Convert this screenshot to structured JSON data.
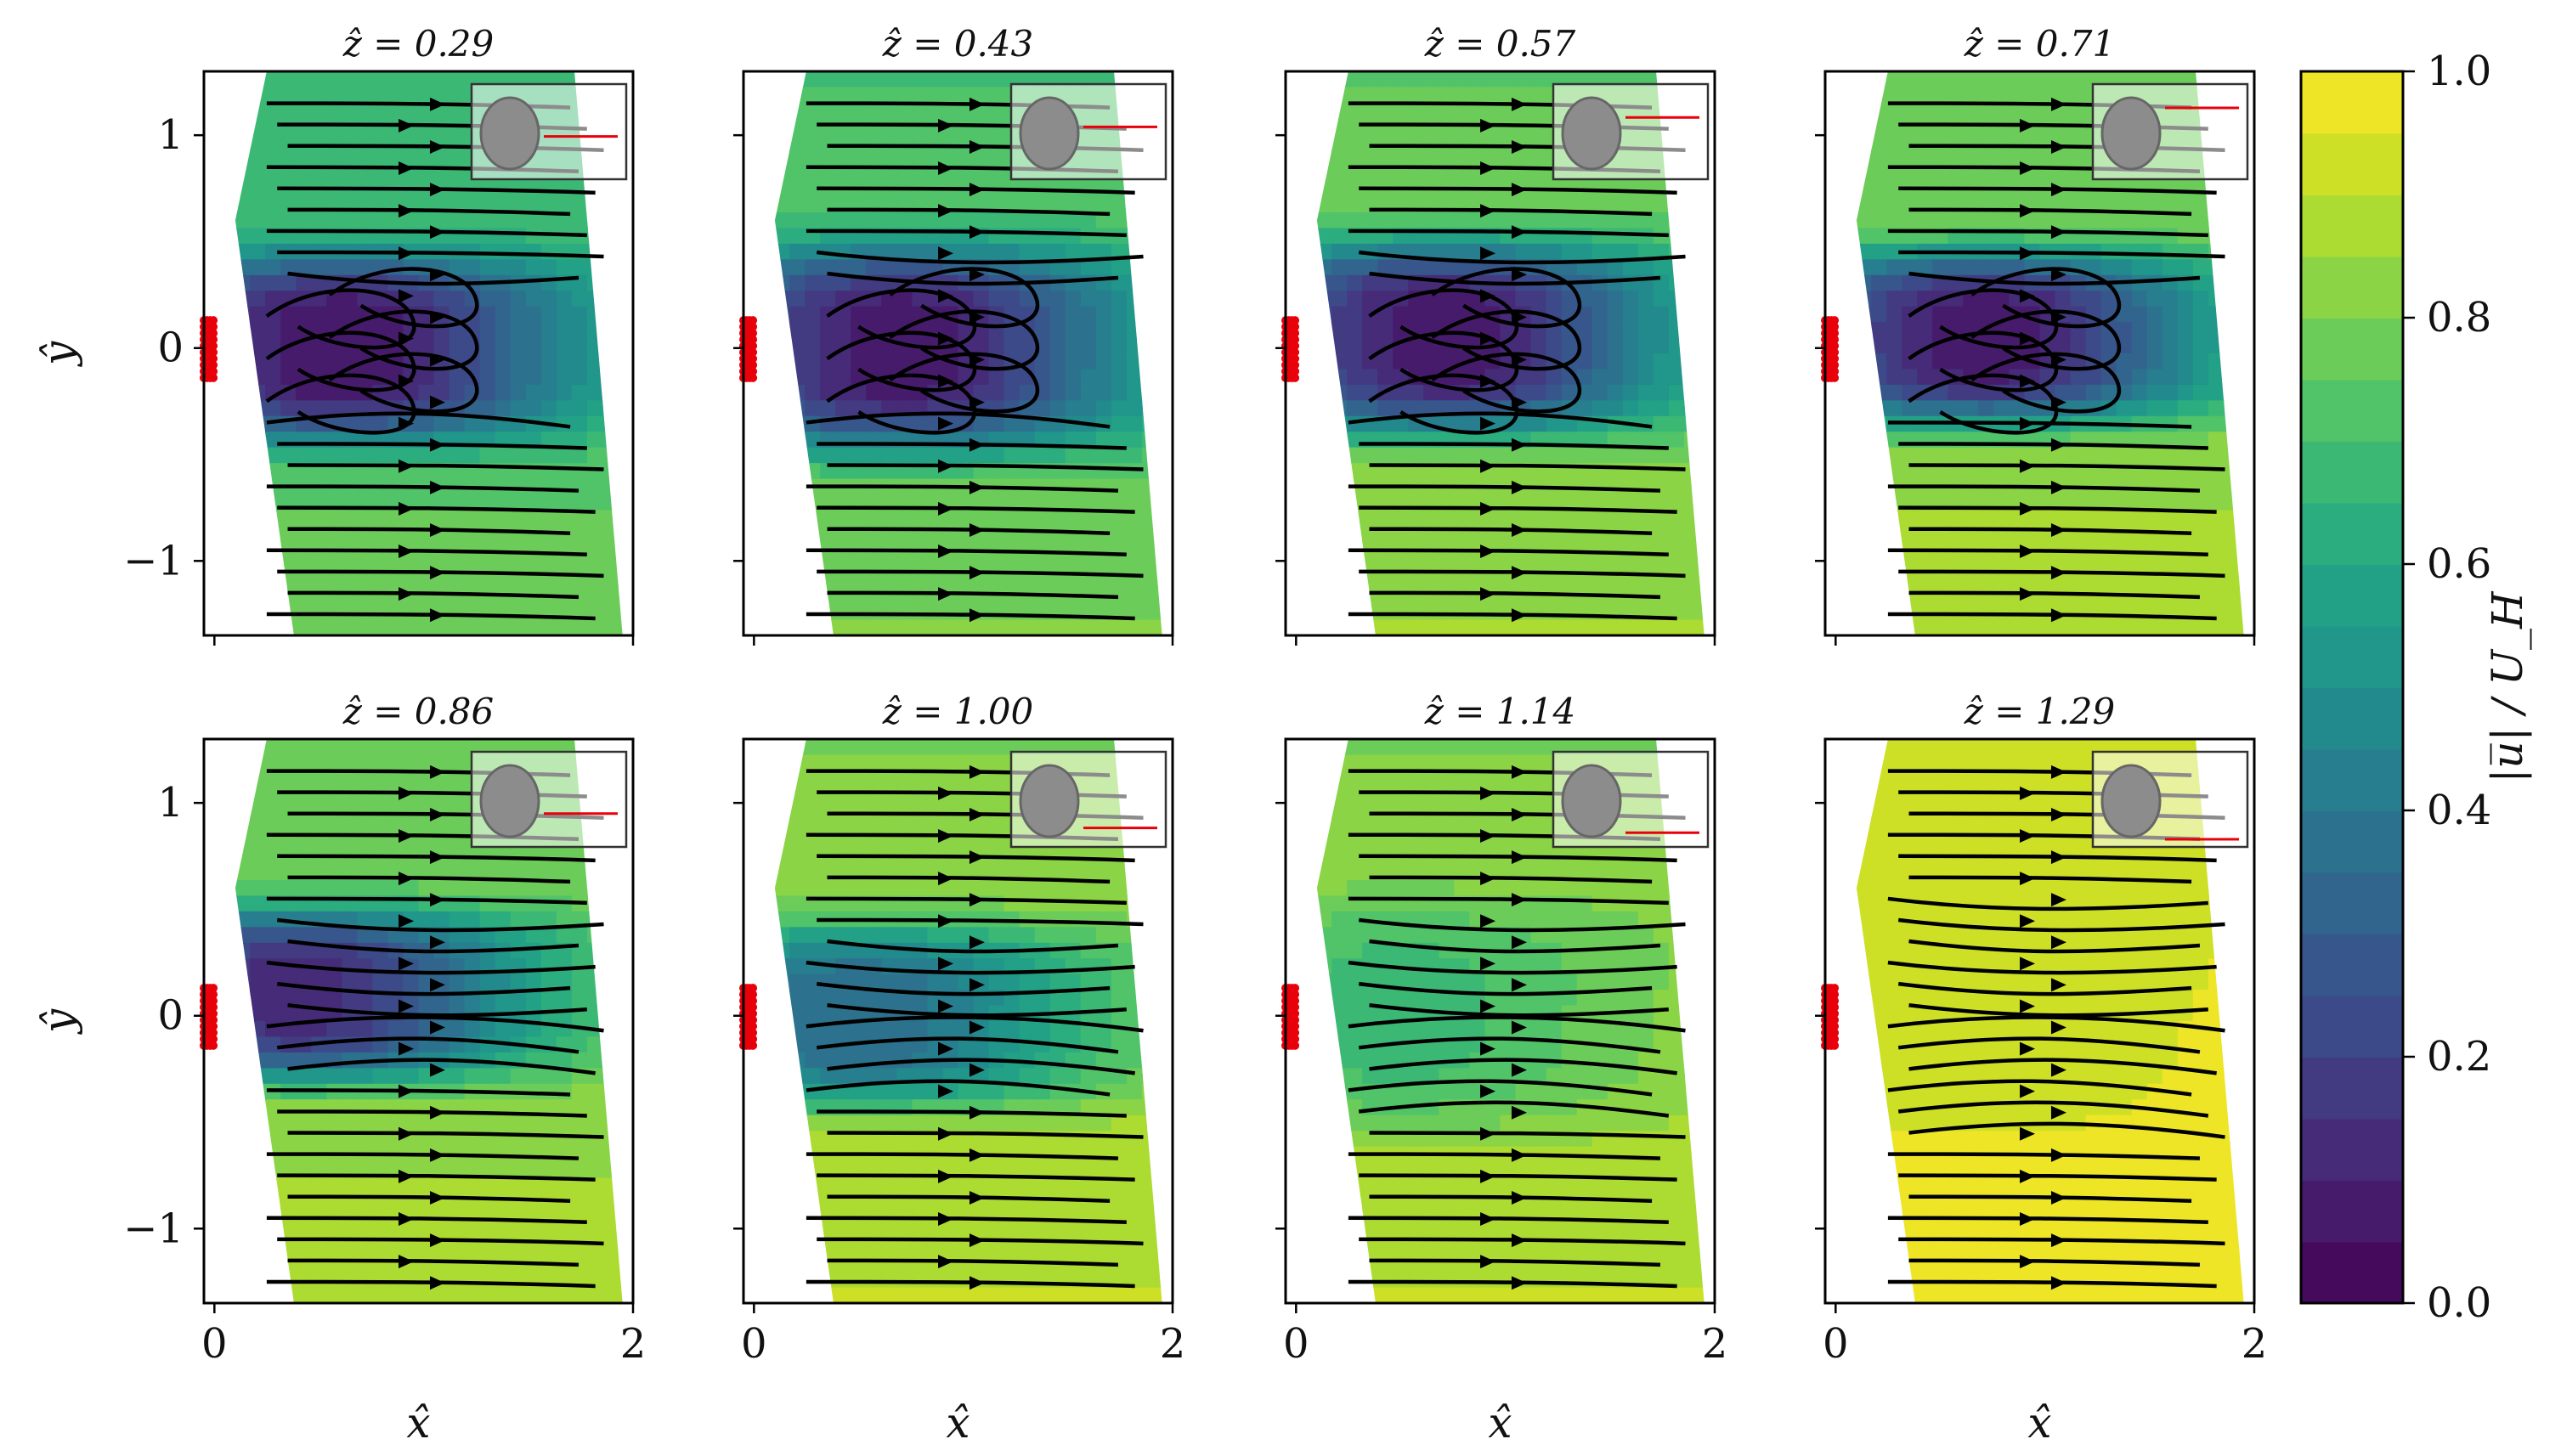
{
  "figure": {
    "colorbar": {
      "label": "|u̅| / U_H",
      "range": [
        0.0,
        1.0
      ],
      "ticks": [
        "0.0",
        "0.2",
        "0.4",
        "0.6",
        "0.8",
        "1.0"
      ],
      "colormap": "viridis",
      "levels": 20
    },
    "shared_axes": {
      "xlabel": "x̂",
      "ylabel": "ŷ",
      "xticks": [
        "0",
        "2"
      ],
      "yticks": [
        "1",
        "0",
        "−1"
      ]
    }
  },
  "chart_data": [
    {
      "type": "heatmap",
      "title": "ẑ = 0.29",
      "z": 0.29,
      "xlim": [
        -0.05,
        2.0
      ],
      "ylim": [
        -1.35,
        1.3
      ],
      "mean_speed_freestream": 0.72,
      "wake_min_speed": 0.05,
      "wake_center": [
        0.6,
        0.0
      ],
      "wake_halfwidth": 0.42,
      "recirculation": true,
      "inset_line_y": 0.45
    },
    {
      "type": "heatmap",
      "title": "ẑ = 0.43",
      "z": 0.43,
      "xlim": [
        -0.05,
        2.0
      ],
      "ylim": [
        -1.35,
        1.3
      ],
      "mean_speed_freestream": 0.75,
      "wake_min_speed": 0.06,
      "wake_center": [
        0.7,
        0.0
      ],
      "wake_halfwidth": 0.45,
      "recirculation": true,
      "inset_line_y": 0.55
    },
    {
      "type": "heatmap",
      "title": "ẑ = 0.57",
      "z": 0.57,
      "xlim": [
        -0.05,
        2.0
      ],
      "ylim": [
        -1.35,
        1.3
      ],
      "mean_speed_freestream": 0.8,
      "wake_min_speed": 0.06,
      "wake_center": [
        0.7,
        0.05
      ],
      "wake_halfwidth": 0.42,
      "recirculation": true,
      "inset_line_y": 0.65
    },
    {
      "type": "heatmap",
      "title": "ẑ = 0.71",
      "z": 0.71,
      "xlim": [
        -0.05,
        2.0
      ],
      "ylim": [
        -1.35,
        1.3
      ],
      "mean_speed_freestream": 0.82,
      "wake_min_speed": 0.06,
      "wake_center": [
        0.7,
        0.05
      ],
      "wake_halfwidth": 0.38,
      "recirculation": true,
      "inset_line_y": 0.75
    },
    {
      "type": "heatmap",
      "title": "ẑ = 0.86",
      "z": 0.86,
      "xlim": [
        -0.05,
        2.0
      ],
      "ylim": [
        -1.35,
        1.3
      ],
      "mean_speed_freestream": 0.82,
      "wake_min_speed": 0.12,
      "wake_center": [
        0.4,
        0.1
      ],
      "wake_halfwidth": 0.38,
      "recirculation": false,
      "inset_line_y": 0.35
    },
    {
      "type": "heatmap",
      "title": "ẑ = 1.00",
      "z": 1.0,
      "xlim": [
        -0.05,
        2.0
      ],
      "ylim": [
        -1.35,
        1.3
      ],
      "mean_speed_freestream": 0.85,
      "wake_min_speed": 0.35,
      "wake_center": [
        0.5,
        0.0
      ],
      "wake_halfwidth": 0.4,
      "recirculation": false,
      "inset_line_y": 0.2
    },
    {
      "type": "heatmap",
      "title": "ẑ = 1.14",
      "z": 1.14,
      "xlim": [
        -0.05,
        2.0
      ],
      "ylim": [
        -1.35,
        1.3
      ],
      "mean_speed_freestream": 0.85,
      "wake_min_speed": 0.68,
      "wake_center": [
        0.5,
        0.0
      ],
      "wake_halfwidth": 0.5,
      "recirculation": false,
      "inset_line_y": 0.15
    },
    {
      "type": "heatmap",
      "title": "ẑ = 1.29",
      "z": 1.29,
      "xlim": [
        -0.05,
        2.0
      ],
      "ylim": [
        -1.35,
        1.3
      ],
      "mean_speed_freestream": 0.98,
      "wake_min_speed": 0.9,
      "wake_center": [
        0.6,
        0.0
      ],
      "wake_halfwidth": 0.6,
      "recirculation": false,
      "inset_line_y": 0.08
    }
  ]
}
